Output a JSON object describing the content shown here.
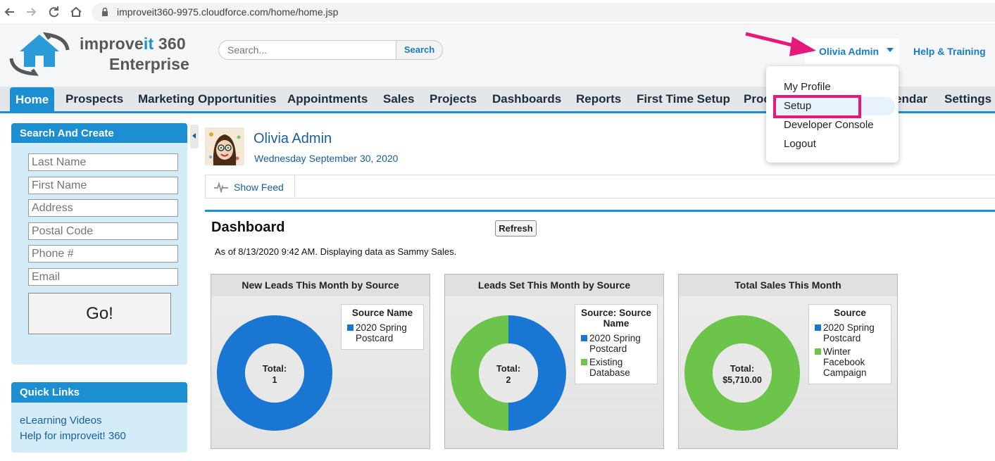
{
  "browser": {
    "url": "improveit360-9975.cloudforce.com/home/home.jsp",
    "icons": [
      "back-arrow-icon",
      "forward-arrow-icon",
      "reload-icon",
      "home-icon",
      "lock-icon"
    ]
  },
  "header": {
    "logo_line1_prefix": "improve",
    "logo_line1_it": "it",
    "logo_line1_suffix": " 360",
    "logo_line2": "Enterprise",
    "search_placeholder": "Search...",
    "search_button": "Search",
    "user_name": "Olivia Admin",
    "help_link": "Help & Training"
  },
  "tabs": [
    {
      "label": "Home",
      "active": true
    },
    {
      "label": "Prospects"
    },
    {
      "label": "Marketing Opportunities"
    },
    {
      "label": "Appointments"
    },
    {
      "label": "Sales"
    },
    {
      "label": "Projects"
    },
    {
      "label": "Dashboards"
    },
    {
      "label": "Reports"
    },
    {
      "label": "First Time Setup"
    },
    {
      "label": "Proc"
    },
    {
      "label": "endar"
    },
    {
      "label": "Settings"
    }
  ],
  "user_menu": {
    "items": [
      "My Profile",
      "Setup",
      "Developer Console",
      "Logout"
    ],
    "highlighted": "Setup"
  },
  "sidebar": {
    "search_title": "Search And Create",
    "fields": [
      {
        "placeholder": "Last Name"
      },
      {
        "placeholder": "First Name"
      },
      {
        "placeholder": "Address"
      },
      {
        "placeholder": "Postal Code"
      },
      {
        "placeholder": "Phone #"
      },
      {
        "placeholder": "Email"
      }
    ],
    "go_button": "Go!",
    "quick_links_title": "Quick Links",
    "quick_links": [
      "eLearning Videos",
      "Help for improveit! 360"
    ]
  },
  "profile": {
    "name": "Olivia Admin",
    "date": "Wednesday September 30, 2020",
    "show_feed": "Show Feed"
  },
  "dashboard": {
    "title": "Dashboard",
    "refresh": "Refresh",
    "as_of": "As of 8/13/2020 9:42 AM. Displaying data as Sammy Sales."
  },
  "colors": {
    "accent": "#1b8fd1",
    "blue_slice": "#1976d2",
    "green_slice": "#6cc44a",
    "highlight_box": "#e6197a"
  },
  "chart_data": [
    {
      "type": "pie",
      "title": "New Leads This Month by Source",
      "legend_title": "Source Name",
      "center_label": "Total:",
      "center_value": "1",
      "series": [
        {
          "name": "2020 Spring Postcard",
          "value": 1,
          "color": "#1976d2"
        }
      ]
    },
    {
      "type": "pie",
      "title": "Leads Set This Month by Source",
      "legend_title": "Source: Source Name",
      "center_label": "Total:",
      "center_value": "2",
      "series": [
        {
          "name": "2020 Spring Postcard",
          "value": 1,
          "color": "#1976d2"
        },
        {
          "name": "Existing Database",
          "value": 1,
          "color": "#6cc44a"
        }
      ]
    },
    {
      "type": "pie",
      "title": "Total Sales This Month",
      "legend_title": "Source",
      "center_label": "Total:",
      "center_value": "$5,710.00",
      "series": [
        {
          "name": "2020 Spring Postcard",
          "value": 0,
          "color": "#1976d2"
        },
        {
          "name": "Winter Facebook Campaign",
          "value": 5710,
          "color": "#6cc44a"
        }
      ]
    }
  ]
}
